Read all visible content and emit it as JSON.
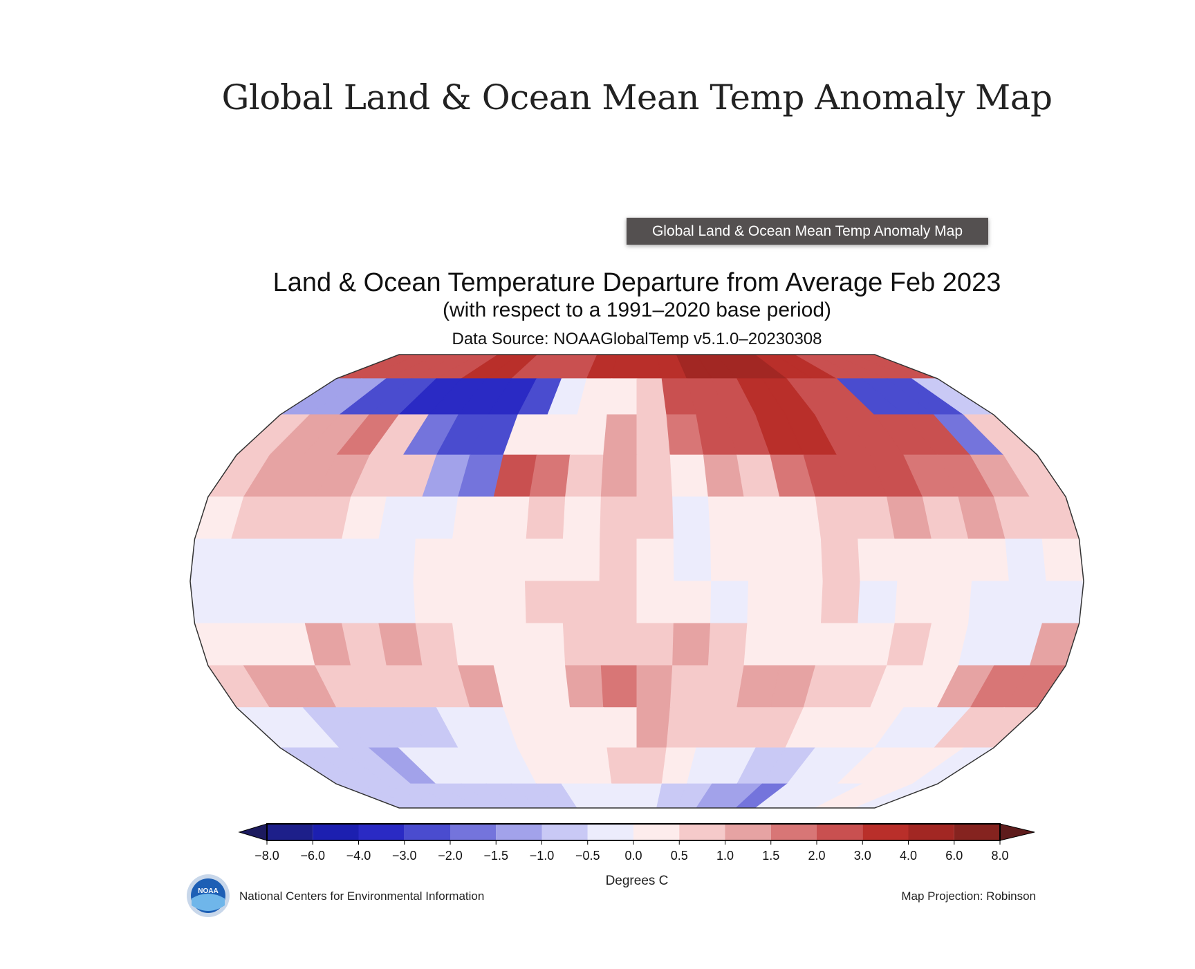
{
  "page": {
    "title": "Global Land & Ocean Mean Temp Anomaly Map"
  },
  "tooltip": {
    "text": "Global Land & Ocean Mean Temp Anomaly Map"
  },
  "map": {
    "title": "Land & Ocean Temperature Departure from Average Feb 2023",
    "subtitle": "(with respect to a 1991–2020 base period)",
    "source": "Data Source: NOAAGlobalTemp v5.1.0–20230308",
    "projection": "Map Projection: Robinson",
    "credit": "National Centers for Environmental Information",
    "logo_text": "NOAA",
    "anomaly_grid_classes": [
      "cccccddcccddddeeeeddcccc",
      "5533222237889cccddcc3336",
      "9aab9433888a9bccddcccc49",
      "9aaa9954cb9a98a9bcccbba9",
      "8999877889899788899a9a99",
      "777777888889878889888878",
      "777777888999887889788777",
      "888a9a9888999a988889877a",
      "9aa9999a88aba99aa9988abb",
      "776666778888a99998887799",
      "666577778889987766778887",
      "666666666777766554777887"
    ]
  },
  "colorbar": {
    "label": "Degrees C",
    "ticks": [
      "−8.0",
      "−6.0",
      "−4.0",
      "−3.0",
      "−2.0",
      "−1.5",
      "−1.0",
      "−0.5",
      "0.0",
      "0.5",
      "1.0",
      "1.5",
      "2.0",
      "3.0",
      "4.0",
      "6.0",
      "8.0"
    ],
    "below_color": "#1c1a5e",
    "above_color": "#5e1c1c",
    "colors": [
      "#1d1f8a",
      "#1c1fb0",
      "#2a2ac4",
      "#4a4ccf",
      "#7474dc",
      "#a2a2ea",
      "#c9c9f5",
      "#ececfc",
      "#fdecec",
      "#f5caca",
      "#e6a3a3",
      "#d87676",
      "#c95050",
      "#b92f2a",
      "#a22723",
      "#85231f"
    ]
  }
}
